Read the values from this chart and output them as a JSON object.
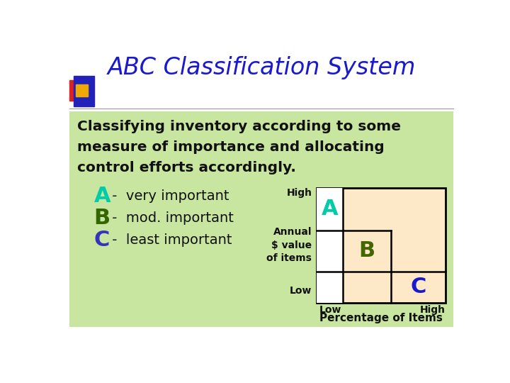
{
  "title": "ABC Classification System",
  "title_color": "#1a1acc",
  "title_fontsize": 24,
  "bg_color": "#ffffff",
  "green_box_color": "#c8e6a0",
  "body_text_line1": "Classifying inventory according to some",
  "body_text_line2": "measure of importance and allocating",
  "body_text_line3": "control efforts accordingly.",
  "body_text_color": "#111111",
  "body_fontsize": 14.5,
  "items": [
    {
      "letter": "A",
      "letter_color": "#00ccaa",
      "desc": " -  very important"
    },
    {
      "letter": "B",
      "letter_color": "#336600",
      "desc": " -  mod. important"
    },
    {
      "letter": "C",
      "letter_color": "#3333bb",
      "desc": " -  least important"
    }
  ],
  "item_letter_fontsize": 22,
  "item_desc_fontsize": 14,
  "chart_bg": "#fde8c8",
  "a_color": "#00ccaa",
  "b_color": "#446600",
  "c_color": "#1a1acc",
  "axis_label_color": "#111111",
  "axis_label_fontsize": 10,
  "percent_label_fontsize": 11,
  "deco_blue": "#2222bb",
  "deco_red": "#dd2222",
  "deco_yellow": "#eeaa00"
}
